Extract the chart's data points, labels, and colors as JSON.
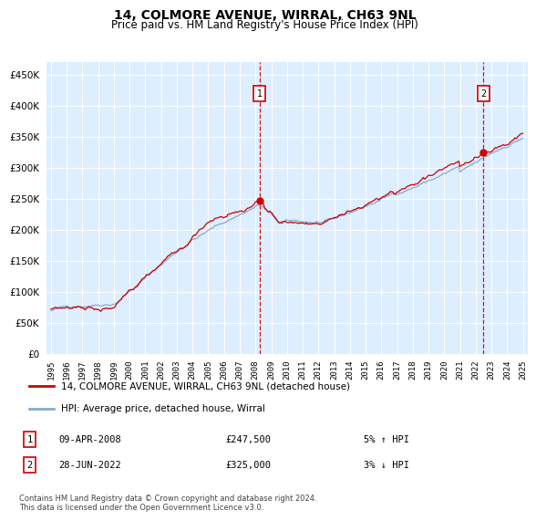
{
  "title": "14, COLMORE AVENUE, WIRRAL, CH63 9NL",
  "subtitle": "Price paid vs. HM Land Registry's House Price Index (HPI)",
  "legend_line1": "14, COLMORE AVENUE, WIRRAL, CH63 9NL (detached house)",
  "legend_line2": "HPI: Average price, detached house, Wirral",
  "annotation1": {
    "label": "1",
    "date_x": 2008.27,
    "price": 247500,
    "text_date": "09-APR-2008",
    "text_price": "£247,500",
    "text_hpi": "5% ↑ HPI"
  },
  "annotation2": {
    "label": "2",
    "date_x": 2022.49,
    "price": 325000,
    "text_date": "28-JUN-2022",
    "text_price": "£325,000",
    "text_hpi": "3% ↓ HPI"
  },
  "fig_bg_color": "#ffffff",
  "plot_bg_color": "#ddeeff",
  "grid_color": "#ffffff",
  "red_line_color": "#cc0000",
  "blue_line_color": "#88aacc",
  "dashed_line_color": "#cc0000",
  "ylim": [
    0,
    470000
  ],
  "yticks": [
    0,
    50000,
    100000,
    150000,
    200000,
    250000,
    300000,
    350000,
    400000,
    450000
  ],
  "xlim": [
    1994.7,
    2025.3
  ],
  "xticks": [
    1995,
    1996,
    1997,
    1998,
    1999,
    2000,
    2001,
    2002,
    2003,
    2004,
    2005,
    2006,
    2007,
    2008,
    2009,
    2010,
    2011,
    2012,
    2013,
    2014,
    2015,
    2016,
    2017,
    2018,
    2019,
    2020,
    2021,
    2022,
    2023,
    2024,
    2025
  ],
  "footer": "Contains HM Land Registry data © Crown copyright and database right 2024.\nThis data is licensed under the Open Government Licence v3.0.",
  "figsize": [
    6.0,
    5.6
  ],
  "dpi": 100
}
